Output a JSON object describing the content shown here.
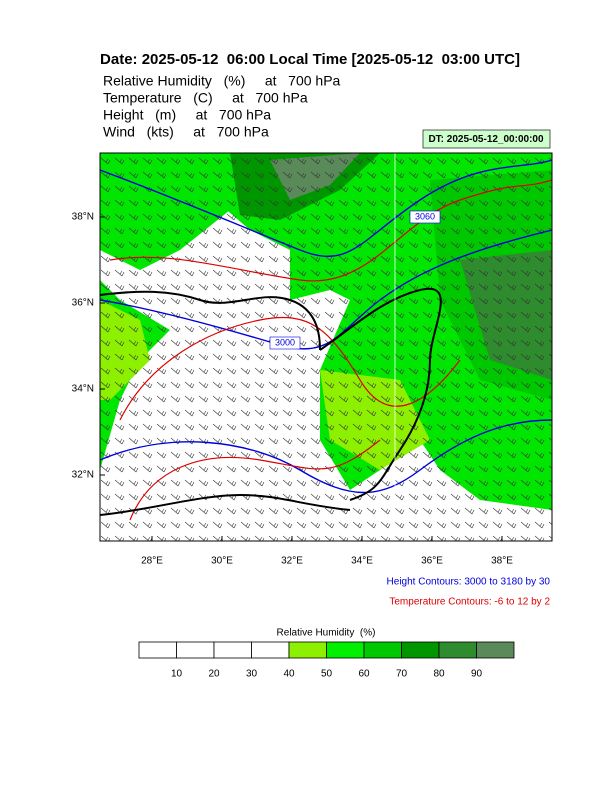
{
  "header": {
    "title": "Date: 2025-05-12  06:00 Local Time [2025-05-12  03:00 UTC]",
    "fields": [
      "Relative Humidity   (%)     at   700 hPa",
      "Temperature   (C)     at   700 hPa",
      "Height   (m)     at   700 hPa",
      "Wind   (kts)     at   700 hPa"
    ],
    "dt": "DT: 2025-05-12_00:00:00"
  },
  "map": {
    "lon_labels": [
      "28°E",
      "30°E",
      "32°E",
      "34°E",
      "36°E",
      "38°E"
    ],
    "lat_labels": [
      "38°N",
      "36°N",
      "34°N",
      "32°N"
    ],
    "contour_labels": [
      "3060",
      "3000"
    ]
  },
  "notes": {
    "height": "Height Contours: 3000 to 3180 by 30",
    "temperature": "Temperature Contours: -6 to 12 by 2"
  },
  "colorbar": {
    "title": "Relative Humidity  (%)",
    "labels": [
      10,
      20,
      30,
      40,
      50,
      60,
      70,
      80,
      90
    ],
    "colors": [
      "#ffffff",
      "#ffffff",
      "#ffffff",
      "#ffffff",
      "#8cf000",
      "#00f000",
      "#00c800",
      "#009600",
      "#2e8b2e",
      "#5a8a5a"
    ]
  }
}
